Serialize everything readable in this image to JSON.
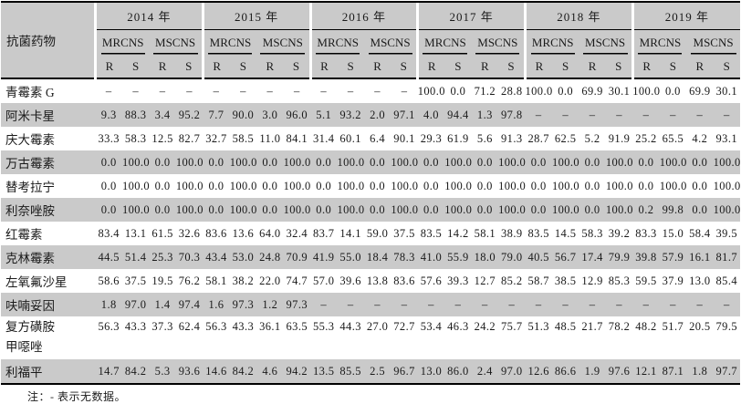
{
  "colors": {
    "header_and_stripe_bg": "#cacaca",
    "rule_color": "#000000",
    "page_bg": "#ffffff"
  },
  "table": {
    "drug_col_header": "抗菌药物",
    "years": [
      "2014 年",
      "2015 年",
      "2016 年",
      "2017 年",
      "2018 年",
      "2019 年"
    ],
    "subgroups": [
      "MRCNS",
      "MSCNS"
    ],
    "rs": [
      "R",
      "S"
    ],
    "rows": [
      {
        "name": "青霉素 G",
        "values": [
          "–",
          "–",
          "–",
          "–",
          "–",
          "–",
          "–",
          "–",
          "–",
          "–",
          "–",
          "–",
          "100.0",
          "0.0",
          "71.2",
          "28.8",
          "100.0",
          "0.0",
          "69.9",
          "30.1",
          "100.0",
          "0.0",
          "69.9",
          "30.1"
        ]
      },
      {
        "name": "阿米卡星",
        "values": [
          "9.3",
          "88.3",
          "3.4",
          "95.2",
          "7.7",
          "90.0",
          "3.0",
          "96.0",
          "5.1",
          "93.2",
          "2.0",
          "97.1",
          "4.0",
          "94.4",
          "1.3",
          "97.8",
          "–",
          "–",
          "–",
          "–",
          "–",
          "–",
          "–",
          "–"
        ]
      },
      {
        "name": "庆大霉素",
        "values": [
          "33.3",
          "58.3",
          "12.5",
          "82.7",
          "32.7",
          "58.5",
          "11.0",
          "84.1",
          "31.4",
          "60.1",
          "6.4",
          "90.1",
          "29.3",
          "61.9",
          "5.6",
          "91.3",
          "28.7",
          "62.5",
          "5.2",
          "91.9",
          "25.2",
          "65.5",
          "4.2",
          "93.1"
        ]
      },
      {
        "name": "万古霉素",
        "values": [
          "0.0",
          "100.0",
          "0.0",
          "100.0",
          "0.0",
          "100.0",
          "0.0",
          "100.0",
          "0.0",
          "100.0",
          "0.0",
          "100.0",
          "0.0",
          "100.0",
          "0.0",
          "100.0",
          "0.0",
          "100.0",
          "0.0",
          "100.0",
          "0.0",
          "100.0",
          "0.0",
          "100.0"
        ]
      },
      {
        "name": "替考拉宁",
        "values": [
          "0.0",
          "100.0",
          "0.0",
          "100.0",
          "0.0",
          "100.0",
          "0.0",
          "100.0",
          "0.0",
          "100.0",
          "0.0",
          "100.0",
          "0.0",
          "100.0",
          "0.0",
          "100.0",
          "0.0",
          "100.0",
          "0.0",
          "100.0",
          "0.0",
          "100.0",
          "0.0",
          "100.0"
        ]
      },
      {
        "name": "利奈唑胺",
        "values": [
          "0.0",
          "100.0",
          "0.0",
          "100.0",
          "0.0",
          "100.0",
          "0.0",
          "100.0",
          "0.0",
          "100.0",
          "0.0",
          "100.0",
          "0.0",
          "100.0",
          "0.0",
          "100.0",
          "0.0",
          "100.0",
          "0.0",
          "100.0",
          "0.2",
          "99.8",
          "0.0",
          "100.0"
        ]
      },
      {
        "name": "红霉素",
        "values": [
          "83.4",
          "13.1",
          "61.5",
          "32.6",
          "83.6",
          "13.6",
          "64.0",
          "32.4",
          "83.7",
          "14.1",
          "59.0",
          "37.5",
          "83.5",
          "14.2",
          "58.1",
          "38.9",
          "83.5",
          "14.5",
          "58.3",
          "39.2",
          "83.3",
          "15.0",
          "58.4",
          "39.5"
        ]
      },
      {
        "name": "克林霉素",
        "values": [
          "44.5",
          "51.4",
          "25.3",
          "70.3",
          "43.4",
          "53.0",
          "24.8",
          "70.9",
          "41.9",
          "55.0",
          "18.4",
          "78.3",
          "41.0",
          "55.9",
          "18.0",
          "79.0",
          "40.5",
          "56.7",
          "17.4",
          "79.9",
          "39.8",
          "57.9",
          "16.1",
          "81.7"
        ]
      },
      {
        "name": "左氧氟沙星",
        "values": [
          "58.6",
          "37.5",
          "19.5",
          "76.2",
          "58.1",
          "38.2",
          "22.0",
          "74.7",
          "57.0",
          "39.6",
          "13.8",
          "83.6",
          "57.6",
          "39.3",
          "12.7",
          "85.2",
          "58.7",
          "38.5",
          "12.9",
          "85.3",
          "59.5",
          "37.9",
          "13.0",
          "85.4"
        ]
      },
      {
        "name": "呋喃妥因",
        "values": [
          "1.8",
          "97.0",
          "1.4",
          "97.4",
          "1.6",
          "97.3",
          "1.2",
          "97.3",
          "–",
          "–",
          "–",
          "–",
          "–",
          "–",
          "–",
          "–",
          "–",
          "–",
          "–",
          "–",
          "–",
          "–",
          "–",
          "–"
        ]
      },
      {
        "name": "复方磺胺",
        "name2": "甲噁唑",
        "values": [
          "56.3",
          "43.3",
          "37.3",
          "62.4",
          "56.3",
          "43.3",
          "36.1",
          "63.5",
          "55.3",
          "44.3",
          "27.0",
          "72.7",
          "53.4",
          "46.3",
          "24.2",
          "75.7",
          "51.3",
          "48.5",
          "21.7",
          "78.2",
          "48.2",
          "51.7",
          "20.5",
          "79.5"
        ]
      },
      {
        "name": "利福平",
        "values": [
          "14.7",
          "84.2",
          "5.3",
          "93.6",
          "14.6",
          "84.2",
          "4.6",
          "94.2",
          "13.5",
          "85.5",
          "2.5",
          "96.7",
          "13.0",
          "86.0",
          "2.4",
          "97.0",
          "12.6",
          "86.6",
          "1.9",
          "97.6",
          "12.1",
          "87.1",
          "1.8",
          "97.7"
        ]
      }
    ],
    "note": "注：- 表示无数据。"
  }
}
